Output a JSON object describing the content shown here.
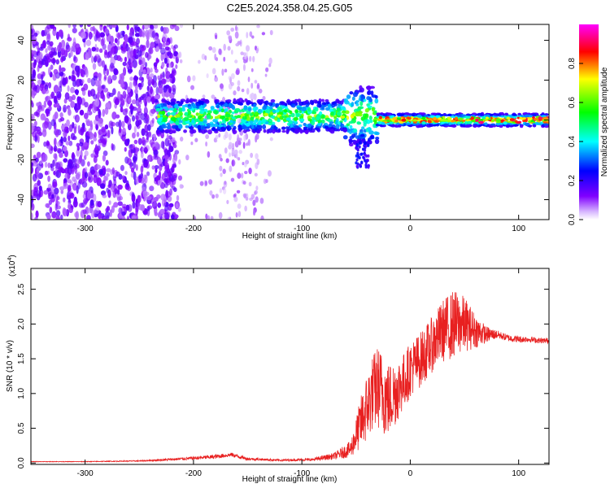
{
  "title": "C2E5.2024.358.04.25.G05",
  "chart_data": [
    {
      "type": "heatmap",
      "xlabel": "Height of straight line (km)",
      "ylabel": "Frequency (Hz)",
      "xlim": [
        -350,
        128
      ],
      "ylim": [
        -50,
        48
      ],
      "x_ticks": [
        -300,
        -200,
        -100,
        0,
        100
      ],
      "x_tick_labels": [
        "-300",
        "-200",
        "-100",
        "0",
        "100"
      ],
      "y_ticks": [
        -40,
        -20,
        0,
        20,
        40
      ],
      "y_tick_labels": [
        "-40",
        "-20",
        "0",
        "20",
        "40"
      ],
      "colorbar": {
        "label": "Normalized spectral amplitude",
        "range": [
          0,
          1
        ],
        "ticks": [
          0.0,
          0.2,
          0.4,
          0.6,
          0.8
        ],
        "tick_labels": [
          "0.0",
          "0.2",
          "0.4",
          "0.6",
          "0.8"
        ],
        "colors": [
          "#ffffff",
          "#8000ff",
          "#0000ff",
          "#00ffff",
          "#00ff00",
          "#ffff00",
          "#ff0000",
          "#ff00ff"
        ]
      },
      "regions": [
        {
          "x_range": [
            -350,
            -215
          ],
          "freq_spread": 48,
          "amplitude": 0.2,
          "density": "dense"
        },
        {
          "x_range": [
            -215,
            -125
          ],
          "freq_spread": 48,
          "amplitude": 0.1,
          "density": "sparse"
        },
        {
          "x_range": [
            -235,
            -30
          ],
          "center_hz": 2,
          "width_hz": 8,
          "amplitude": 0.5,
          "density": "band"
        },
        {
          "x_range": [
            -30,
            128
          ],
          "center_hz": 0,
          "width_hz": 4,
          "amplitude": 0.95,
          "density": "narrow-band"
        }
      ],
      "grid": false,
      "legend": "none"
    },
    {
      "type": "line",
      "xlabel": "Height of straight line (km)",
      "ylabel": "SNR (10 * v/v)",
      "y_multiplier_label": "(x10",
      "y_multiplier_exp": "4",
      "xlim": [
        -350,
        128
      ],
      "ylim": [
        -0.02,
        2.8
      ],
      "y_unit_scale": 10000,
      "x_ticks": [
        -300,
        -200,
        -100,
        0,
        100
      ],
      "x_tick_labels": [
        "-300",
        "-200",
        "-100",
        "0",
        "100"
      ],
      "y_ticks": [
        0.0,
        0.5,
        1.0,
        1.5,
        2.0,
        2.5
      ],
      "y_tick_labels": [
        "0.0",
        "0.5",
        "1.0",
        "1.5",
        "2.0",
        "2.5"
      ],
      "series": [
        {
          "color": "#e82020",
          "x": [
            -350,
            -300,
            -250,
            -210,
            -180,
            -165,
            -150,
            -120,
            -90,
            -70,
            -55,
            -50,
            -45,
            -40,
            -35,
            -30,
            -25,
            -20,
            -15,
            -10,
            -5,
            0,
            10,
            20,
            30,
            40,
            50,
            60,
            70,
            80,
            90,
            100,
            110,
            120,
            128
          ],
          "y": [
            0.02,
            0.02,
            0.03,
            0.06,
            0.09,
            0.12,
            0.06,
            0.04,
            0.05,
            0.1,
            0.2,
            0.4,
            0.6,
            0.8,
            1.0,
            1.1,
            1.0,
            0.9,
            1.0,
            1.1,
            1.2,
            1.35,
            1.5,
            1.7,
            1.9,
            2.0,
            2.0,
            1.9,
            1.85,
            1.85,
            1.8,
            1.78,
            1.78,
            1.76,
            1.76
          ],
          "noise": [
            0.004,
            0.004,
            0.008,
            0.02,
            0.03,
            0.03,
            0.02,
            0.015,
            0.02,
            0.05,
            0.12,
            0.25,
            0.4,
            0.5,
            0.55,
            0.6,
            0.6,
            0.55,
            0.5,
            0.45,
            0.4,
            0.4,
            0.4,
            0.4,
            0.45,
            0.5,
            0.4,
            0.25,
            0.12,
            0.06,
            0.05,
            0.05,
            0.04,
            0.04,
            0.04
          ]
        }
      ],
      "grid": false,
      "legend": "none"
    }
  ]
}
